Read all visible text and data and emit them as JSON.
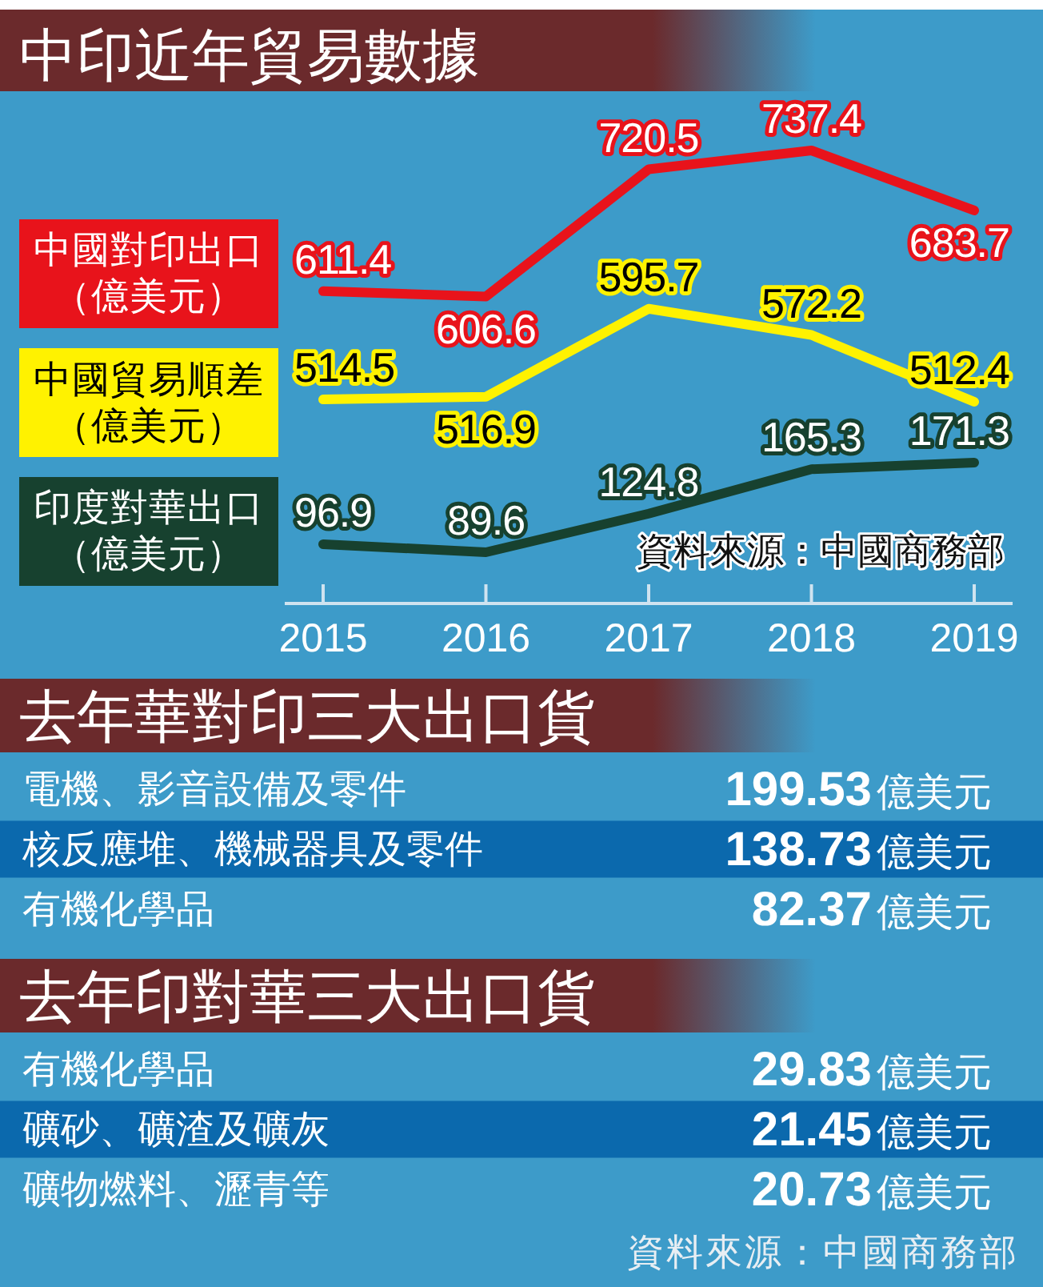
{
  "chart_data": [
    {
      "type": "line",
      "title": "中印近年貿易數據",
      "categories": [
        null,
        null,
        null,
        null,
        null
      ],
      "series": [
        {
          "name": "中國對印出口（億美元）",
          "color": "#e8131b",
          "values": [
            611.4,
            606.6,
            720.5,
            737.4,
            683.7
          ]
        },
        {
          "name": "中國貿易順差（億美元）",
          "color": "#fff200",
          "values": [
            514.5,
            516.9,
            595.7,
            572.2,
            512.4
          ]
        }
      ],
      "data_labels": true,
      "legend": "left",
      "tick_labels": false
    },
    {
      "type": "line",
      "categories": [
        "2015",
        "2016",
        "2017",
        "2018",
        "2019"
      ],
      "series": [
        {
          "name": "印度對華出口（億美元）",
          "color": "#17412f",
          "values": [
            96.9,
            89.6,
            124.8,
            165.3,
            171.3
          ]
        }
      ],
      "data_labels": true,
      "legend": "left",
      "tick_labels": "x",
      "annotations": [
        "資料來源：中國商務部"
      ]
    },
    {
      "type": "other",
      "title": "去年華對印三大出口貨",
      "categories": [
        "電機、影音設備及零件",
        "核反應堆、機械器具及零件",
        "有機化學品"
      ],
      "values": [
        199.53,
        138.73,
        82.37
      ],
      "data_labels": true,
      "ylabel": "億美元"
    },
    {
      "type": "other",
      "title": "去年印對華三大出口貨",
      "categories": [
        "有機化學品",
        "礦砂、礦渣及礦灰",
        "礦物燃料、瀝青等"
      ],
      "values": [
        29.83,
        21.45,
        20.73
      ],
      "data_labels": true,
      "ylabel": "億美元",
      "annotations": [
        "資料來源：中國商務部"
      ]
    }
  ]
}
